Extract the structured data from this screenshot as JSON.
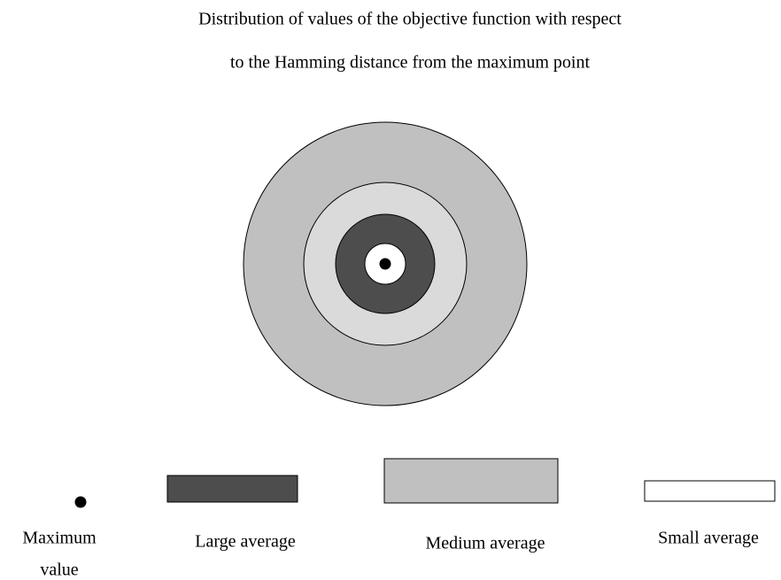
{
  "title": {
    "lines": [
      "Distribution of values of the objective function with respect",
      "to the Hamming distance from the maximum point"
    ]
  },
  "legend": [
    {
      "label": [
        "Maximum",
        "value"
      ]
    },
    {
      "label": [
        "Large average"
      ]
    },
    {
      "label": [
        "Medium average"
      ]
    },
    {
      "label": [
        "Small average"
      ]
    }
  ]
}
